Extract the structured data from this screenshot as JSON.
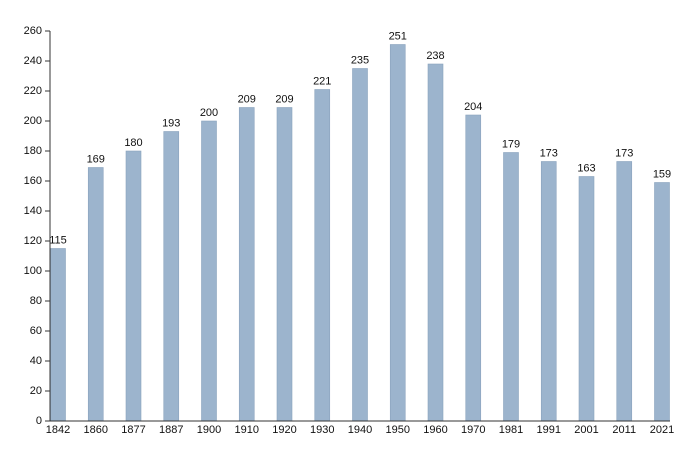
{
  "chart_data": {
    "type": "bar",
    "categories": [
      "1842",
      "1860",
      "1877",
      "1887",
      "1900",
      "1910",
      "1920",
      "1930",
      "1940",
      "1950",
      "1960",
      "1970",
      "1981",
      "1991",
      "2001",
      "2011",
      "2021"
    ],
    "values": [
      115,
      169,
      180,
      193,
      200,
      209,
      209,
      221,
      235,
      251,
      238,
      204,
      179,
      173,
      163,
      173,
      159
    ],
    "color": "#9cb4cd",
    "ylim": [
      0,
      260
    ],
    "yticks": [
      0,
      20,
      40,
      60,
      80,
      100,
      120,
      140,
      160,
      180,
      200,
      220,
      240,
      260
    ],
    "grid": true
  }
}
